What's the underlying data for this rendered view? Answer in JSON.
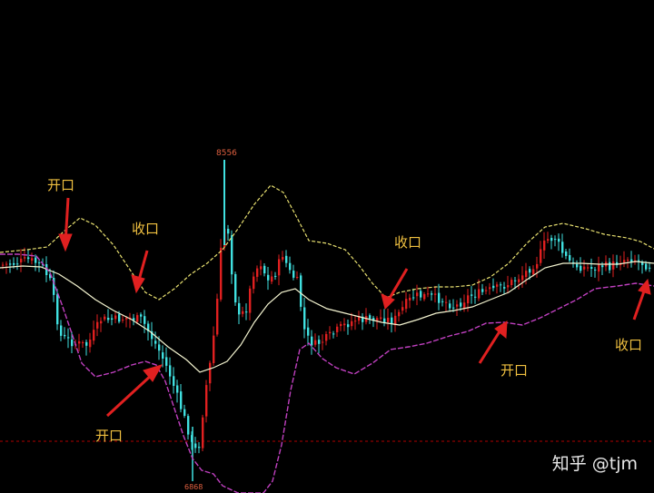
{
  "chart_data": {
    "type": "candlestick",
    "title": "",
    "xlabel": "",
    "ylabel": "",
    "grid": false,
    "price_labels": {
      "high": "8556",
      "low": "6868"
    },
    "ylim": [
      6820,
      8600
    ],
    "reference_line": 7000,
    "series": [
      {
        "name": "",
        "kind": "band-upper",
        "color": "#e8e070"
      },
      {
        "name": "",
        "kind": "band-middle",
        "color": "#f4f4d0"
      },
      {
        "name": "",
        "kind": "band-lower",
        "color": "#c040c0"
      }
    ],
    "annotations": [
      {
        "text": "开口",
        "id": "a1"
      },
      {
        "text": "收口",
        "id": "a2"
      },
      {
        "text": "开口",
        "id": "a3"
      },
      {
        "text": "收口",
        "id": "a4"
      },
      {
        "text": "开口",
        "id": "a5"
      },
      {
        "text": "收口",
        "id": "a6"
      }
    ]
  },
  "colors": {
    "background": "#000000",
    "up_candle": "#e02020",
    "down_candle": "#40e0e0",
    "arrow": "#e02020",
    "annotation_text": "#f0c040",
    "reference_line": "#c00000"
  },
  "watermark": "知乎 @tjm"
}
